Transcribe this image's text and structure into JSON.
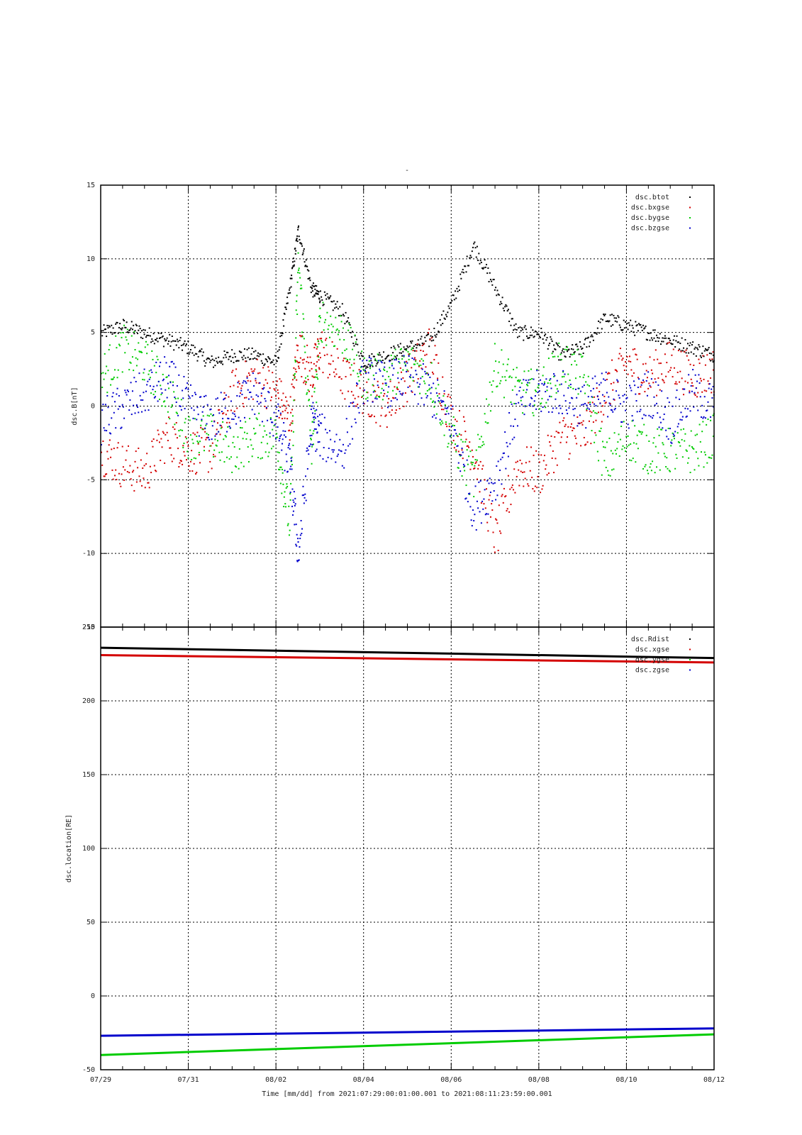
{
  "page_title_mark": "-",
  "xaxis": {
    "tick_labels": [
      "07/29",
      "07/31",
      "08/02",
      "08/04",
      "08/06",
      "08/08",
      "08/10",
      "08/12"
    ],
    "title": "Time [mm/dd]  from 2021:07:29:00:01:00.001  to  2021:08:11:23:59:00.001",
    "range_days": [
      0,
      14
    ]
  },
  "chart_data": [
    {
      "type": "scatter",
      "ylabel": "dsc.B[nT]",
      "ylim": [
        -15,
        15
      ],
      "yticks": [
        -15,
        -10,
        -5,
        0,
        5,
        10,
        15
      ],
      "grid": true,
      "legend_placement": "top-right",
      "series": [
        {
          "name": "dsc.btot",
          "color": "#000000",
          "x": [
            0,
            0.5,
            1,
            1.5,
            2,
            2.5,
            3,
            3.5,
            4,
            4.3,
            4.5,
            4.8,
            5,
            5.5,
            6,
            6.5,
            7,
            7.5,
            8,
            8.5,
            9,
            9.5,
            10,
            10.5,
            11,
            11.5,
            12,
            12.5,
            13,
            13.5,
            14
          ],
          "y": [
            5,
            5.5,
            5,
            4.5,
            4,
            3,
            3.5,
            3.5,
            3,
            8,
            12,
            8,
            7.5,
            6.5,
            3,
            3.5,
            4,
            4.5,
            7,
            11,
            8,
            5,
            5,
            3.5,
            4,
            6,
            5.5,
            5,
            4.5,
            4,
            3.5
          ]
        },
        {
          "name": "dsc.bxgse",
          "color": "#d40000",
          "x": [
            0,
            0.5,
            1,
            1.5,
            2,
            2.5,
            3,
            3.5,
            4,
            4.3,
            4.5,
            4.8,
            5,
            5.5,
            6,
            6.5,
            7,
            7.5,
            8,
            8.5,
            9,
            9.5,
            10,
            10.5,
            11,
            11.5,
            12,
            12.5,
            13,
            13.5,
            14
          ],
          "y": [
            -3,
            -4,
            -4.5,
            -2,
            -3,
            -3,
            1,
            2,
            1,
            -1,
            4,
            2,
            4,
            2,
            1,
            0,
            2,
            4,
            -1,
            -3,
            -9,
            -4,
            -4.5,
            -2,
            -2,
            1,
            3,
            2,
            3,
            2,
            2.5
          ]
        },
        {
          "name": "dsc.bygse",
          "color": "#00cc00",
          "x": [
            0,
            0.5,
            1,
            1.5,
            2,
            2.5,
            3,
            3.5,
            4,
            4.3,
            4.5,
            4.8,
            5,
            5.5,
            6,
            6.5,
            7,
            7.5,
            8,
            8.5,
            9,
            9.5,
            10,
            10.5,
            11,
            11.5,
            12,
            12.5,
            13,
            13.5,
            14
          ],
          "y": [
            2,
            4,
            3,
            1,
            -2,
            -2,
            -3,
            -2,
            -2,
            -8,
            10,
            -3,
            6,
            5,
            2,
            2,
            3,
            2,
            -2,
            -5,
            3,
            1,
            1,
            3,
            2,
            -4,
            -2,
            -3,
            -3,
            -3,
            -2
          ]
        },
        {
          "name": "dsc.bzgse",
          "color": "#0000cc",
          "x": [
            0,
            0.5,
            1,
            1.5,
            2,
            2.5,
            3,
            3.5,
            4,
            4.3,
            4.5,
            4.8,
            5,
            5.5,
            6,
            6.5,
            7,
            7.5,
            8,
            8.5,
            9,
            9.5,
            10,
            10.5,
            11,
            11.5,
            12,
            12.5,
            13,
            13.5,
            14
          ],
          "y": [
            -1,
            0,
            1,
            2,
            0,
            -1,
            0,
            1,
            -1,
            -4,
            -10,
            -1,
            -2,
            -3,
            2,
            1.5,
            2,
            1,
            -1,
            -7,
            -5,
            0,
            1,
            1,
            0,
            1,
            0,
            1,
            -1,
            1,
            0
          ]
        }
      ]
    },
    {
      "type": "line",
      "ylabel": "dsc.location[RE]",
      "ylim": [
        -50,
        250
      ],
      "yticks": [
        -50,
        0,
        50,
        100,
        150,
        200,
        250
      ],
      "grid": true,
      "legend_placement": "top-right",
      "series": [
        {
          "name": "dsc.Rdist",
          "color": "#000000",
          "x": [
            0,
            14
          ],
          "y": [
            236,
            229
          ]
        },
        {
          "name": "dsc.xgse",
          "color": "#d40000",
          "x": [
            0,
            14
          ],
          "y": [
            231,
            226
          ]
        },
        {
          "name": "dsc.ygse",
          "color": "#00cc00",
          "x": [
            0,
            14
          ],
          "y": [
            -40,
            -26
          ]
        },
        {
          "name": "dsc.zgse",
          "color": "#0000cc",
          "x": [
            0,
            14
          ],
          "y": [
            -27,
            -22
          ]
        }
      ]
    }
  ]
}
